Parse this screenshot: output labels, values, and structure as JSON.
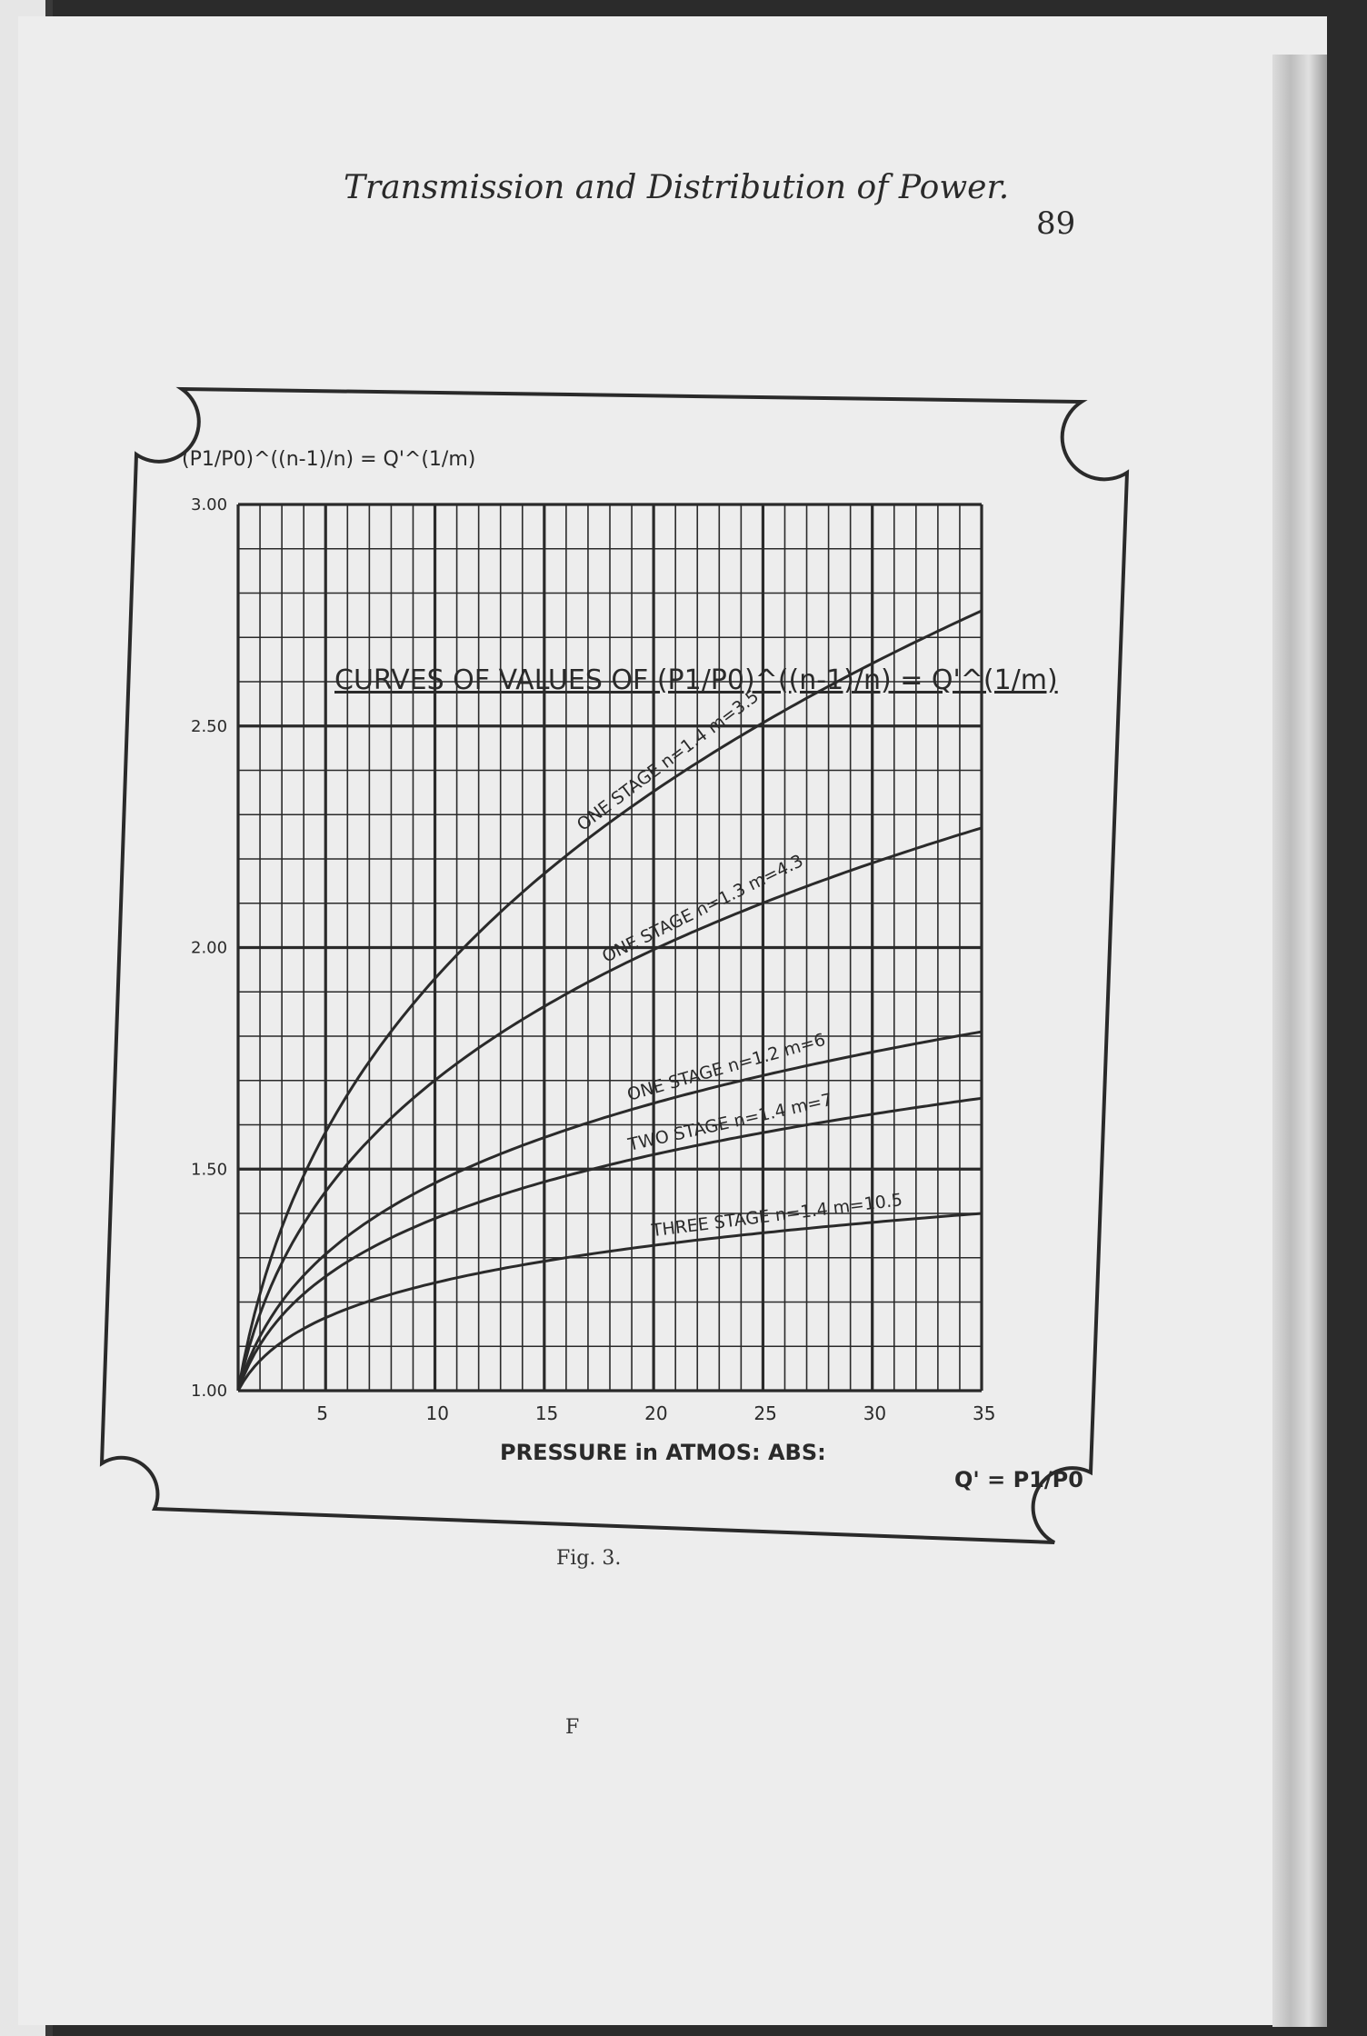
{
  "header": {
    "running_title": "Transmission and Distribution of Power.",
    "page_number": "89"
  },
  "caption": "Fig. 3.",
  "signature_mark": "F",
  "chart_data": {
    "type": "line",
    "title": "CURVES OF VALUES OF (P1/P0)^((n-1)/n) = Q'^(1/m)",
    "ylabel": "(P1/P0)^((n-1)/n) = Q'^(1/m)",
    "xlabel": "PRESSURE in ATMOS: ABS:",
    "xlabel_right": "Q' = P1/P0",
    "xlim": [
      1,
      35
    ],
    "ylim": [
      1.0,
      3.0
    ],
    "x_ticks": [
      "5",
      "10",
      "15",
      "20",
      "25",
      "30",
      "35"
    ],
    "y_ticks": [
      "1.00",
      "1.50",
      "2.00",
      "2.50",
      "3.00"
    ],
    "grid": true,
    "x": [
      1,
      2,
      5,
      10,
      15,
      20,
      25,
      30,
      35
    ],
    "series": [
      {
        "name": "ONE STAGE n=1.4 m=3.5",
        "values": [
          1.0,
          1.22,
          1.58,
          1.93,
          2.17,
          2.35,
          2.51,
          2.64,
          2.76
        ]
      },
      {
        "name": "ONE STAGE n=1.3 m=4.3",
        "values": [
          1.0,
          1.17,
          1.45,
          1.7,
          1.87,
          2.0,
          2.1,
          2.19,
          2.27
        ]
      },
      {
        "name": "ONE STAGE n=1.2 m=6",
        "values": [
          1.0,
          1.12,
          1.31,
          1.47,
          1.57,
          1.65,
          1.71,
          1.76,
          1.81
        ]
      },
      {
        "name": "TWO STAGE n=1.4 m=7",
        "values": [
          1.0,
          1.1,
          1.26,
          1.39,
          1.47,
          1.53,
          1.58,
          1.63,
          1.66
        ]
      },
      {
        "name": "THREE STAGE n=1.4 m=10.5",
        "values": [
          1.0,
          1.07,
          1.17,
          1.24,
          1.29,
          1.33,
          1.36,
          1.38,
          1.4
        ]
      }
    ],
    "colors": {
      "ink": "#2a2a2a",
      "paper": "#ededed"
    }
  }
}
